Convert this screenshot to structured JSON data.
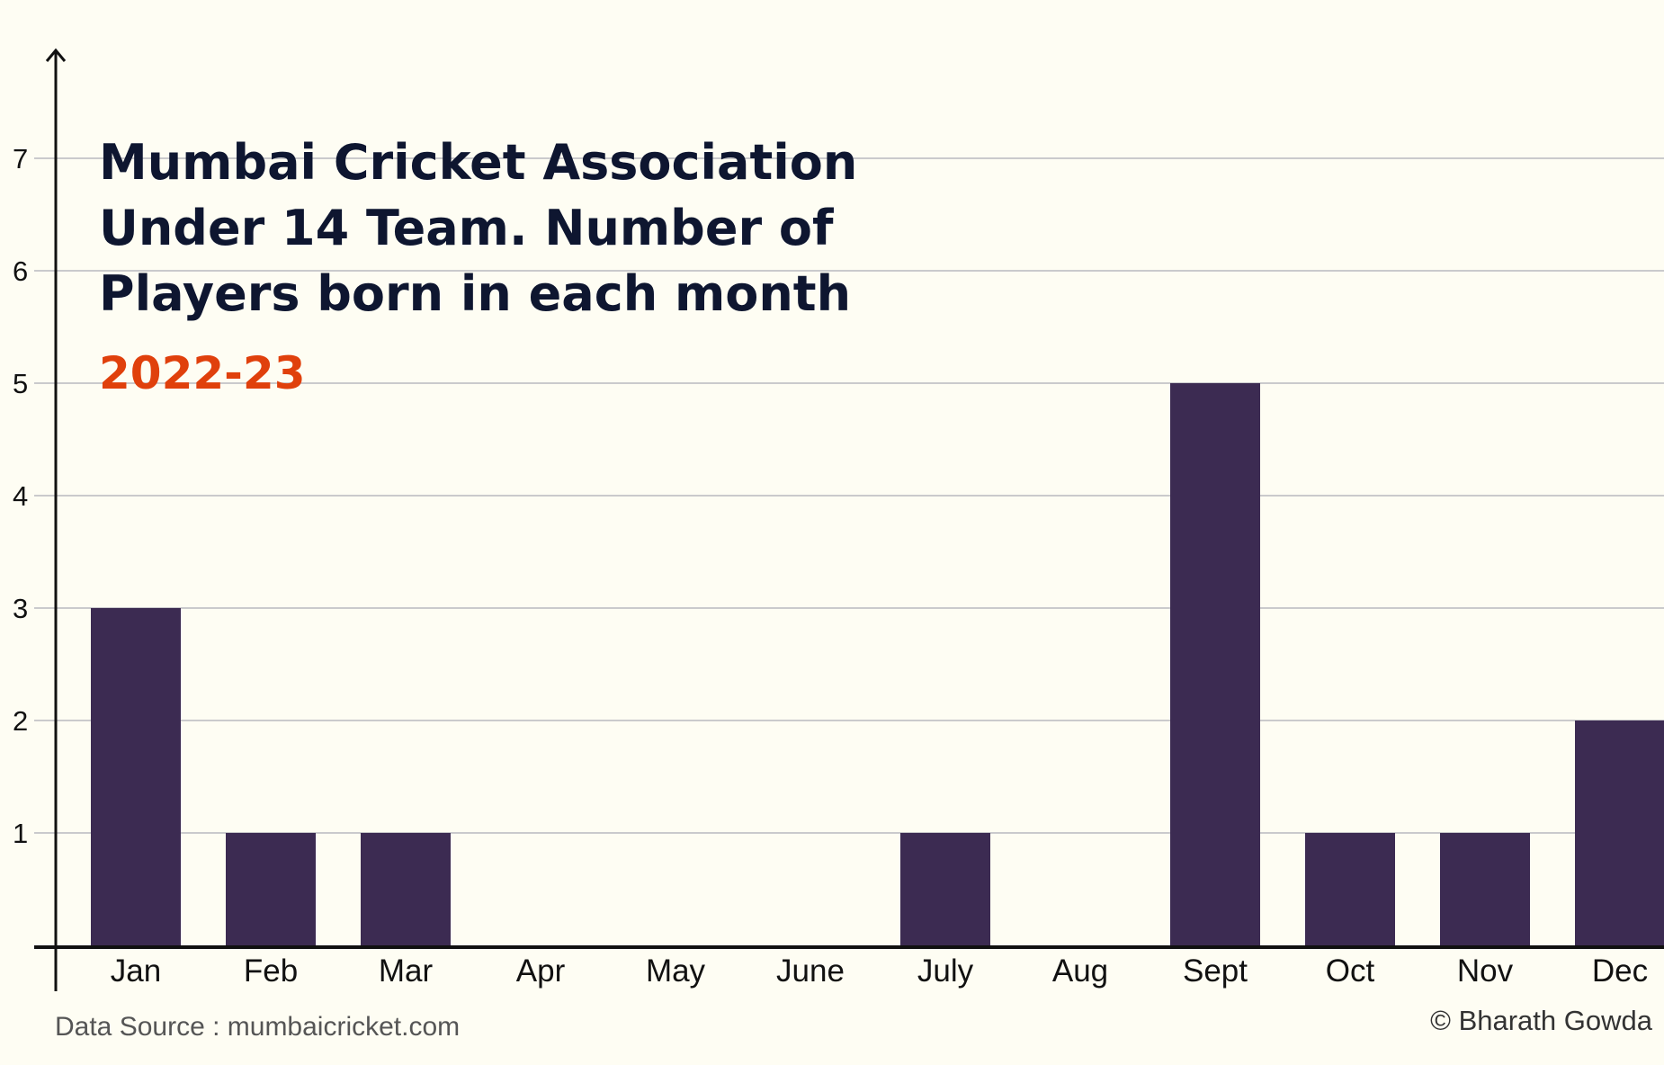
{
  "chart_data": {
    "type": "bar",
    "title": "Mumbai Cricket Association Under 14 Team. Number of Players born in each month",
    "title_lines": [
      "Mumbai Cricket Association",
      "Under 14 Team. Number of",
      "Players born in each month"
    ],
    "subtitle": "2022-23",
    "categories": [
      "Jan",
      "Feb",
      "Mar",
      "Apr",
      "May",
      "June",
      "July",
      "Aug",
      "Sept",
      "Oct",
      "Nov",
      "Dec"
    ],
    "values": [
      3,
      1,
      1,
      0,
      0,
      0,
      1,
      0,
      5,
      1,
      1,
      2
    ],
    "y_ticks": [
      1,
      2,
      3,
      4,
      5,
      6,
      7
    ],
    "ylim": [
      0,
      7.5
    ],
    "xlabel": "",
    "ylabel": "",
    "grid": true,
    "legend": "none",
    "source": "Data Source : mumbaicricket.com",
    "credit": "© Bharath Gowda"
  },
  "colors": {
    "background": "#fefdf3",
    "bar": "#3c2b52",
    "title": "#0e1630",
    "subtitle": "#e0400c",
    "grid": "#b9b9c0",
    "axis": "#111111"
  }
}
